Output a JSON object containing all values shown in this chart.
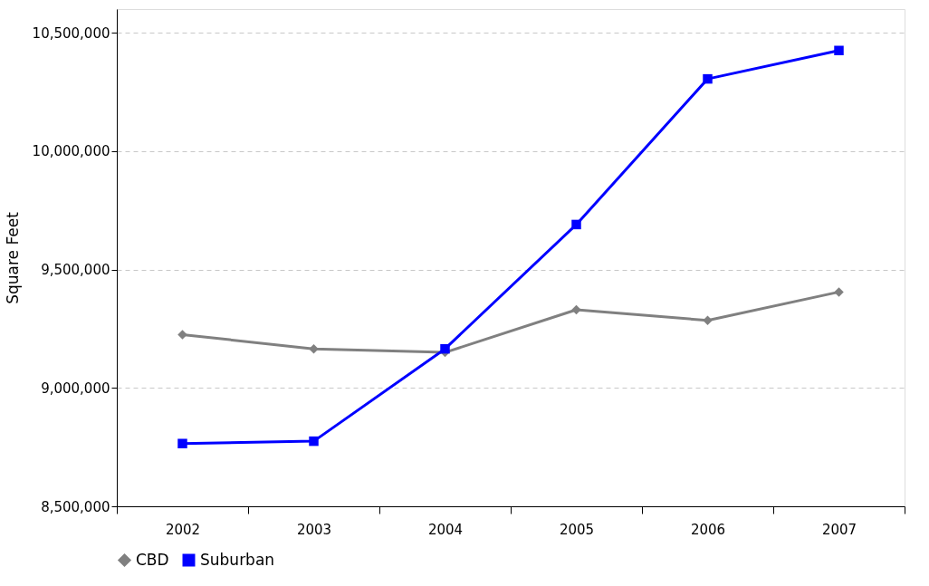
{
  "chart_data": {
    "type": "line",
    "ylabel": "Square Feet",
    "categories": [
      "2002",
      "2003",
      "2004",
      "2005",
      "2006",
      "2007"
    ],
    "series": [
      {
        "name": "CBD",
        "color": "#808080",
        "marker": "diamond",
        "values": [
          9225000,
          9165000,
          9150000,
          9330000,
          9285000,
          9405000
        ]
      },
      {
        "name": "Suburban",
        "color": "#0000ff",
        "marker": "square",
        "values": [
          8765000,
          8775000,
          9165000,
          9690000,
          10305000,
          10425000
        ]
      }
    ],
    "ylim": [
      8500000,
      10600000
    ],
    "yticks": [
      {
        "value": 8500000,
        "label": "8,500,000"
      },
      {
        "value": 9000000,
        "label": "9,000,000"
      },
      {
        "value": 9500000,
        "label": "9,500,000"
      },
      {
        "value": 10000000,
        "label": "10,000,000"
      },
      {
        "value": 10500000,
        "label": "10,500,000"
      }
    ],
    "grid": "y",
    "legend": "bottom",
    "line_style": "solid"
  }
}
